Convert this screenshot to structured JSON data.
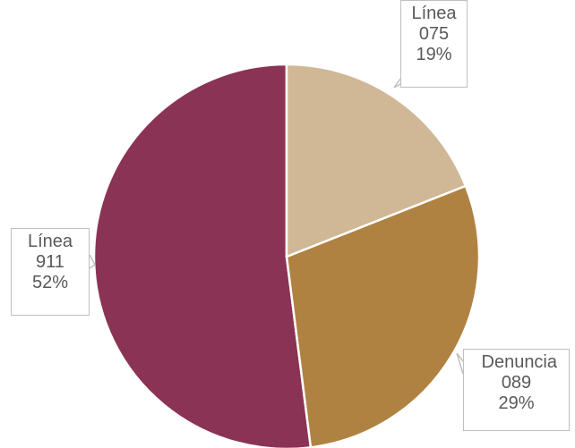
{
  "chart_data": {
    "type": "pie",
    "categories": [
      "Línea 075",
      "Denuncia 089",
      "Línea 911"
    ],
    "values": [
      19,
      29,
      52
    ],
    "value_labels": [
      "19%",
      "29%",
      "52%"
    ],
    "colors": [
      "#d0b796",
      "#b08242",
      "#8b3355"
    ]
  }
}
